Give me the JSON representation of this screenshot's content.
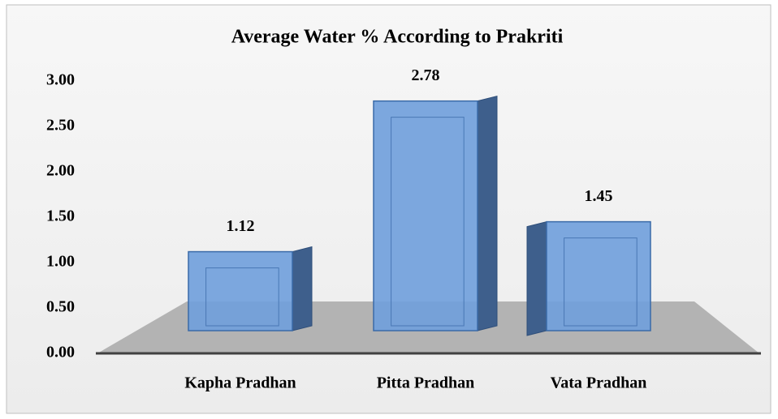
{
  "chart_data": {
    "type": "bar3d",
    "title": "Average Water % According to Prakriti",
    "categories": [
      "Kapha Pradhan",
      "Pitta Pradhan",
      "Vata Pradhan"
    ],
    "values": [
      1.12,
      2.78,
      1.45
    ],
    "color": "#6f9edb",
    "ylim": [
      0,
      3
    ],
    "yticks": [
      {
        "value": 0,
        "label": "0.00"
      },
      {
        "value": 0.5,
        "label": "0.50"
      },
      {
        "value": 1,
        "label": "1.00"
      },
      {
        "value": 1.5,
        "label": "1.50"
      },
      {
        "value": 2,
        "label": "2.00"
      },
      {
        "value": 2.5,
        "label": "2.50"
      },
      {
        "value": 3,
        "label": "3.00"
      }
    ],
    "grid": false
  }
}
